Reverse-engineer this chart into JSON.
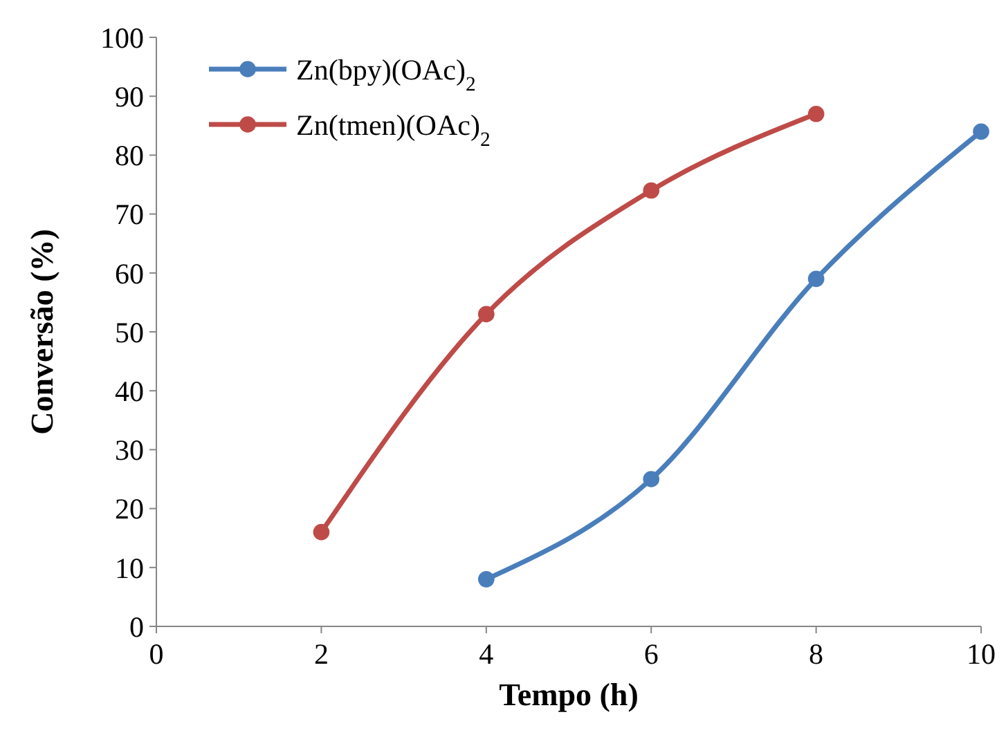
{
  "chart_data": {
    "type": "line",
    "xlabel": "Tempo (h)",
    "ylabel": "Conversão (%)",
    "xlim": [
      0,
      10
    ],
    "xticks": [
      0,
      2,
      4,
      6,
      8,
      10
    ],
    "ylim": [
      0,
      100
    ],
    "yticks": [
      0,
      10,
      20,
      30,
      40,
      50,
      60,
      70,
      80,
      90,
      100
    ],
    "series": [
      {
        "name": "Zn(bpy)(OAc)$_{2}$",
        "color": "#4a7ebb",
        "x": [
          4,
          6,
          8,
          10
        ],
        "values": [
          8,
          25,
          59,
          84
        ]
      },
      {
        "name": "Zn(tmen)(OAc)$_{2}$",
        "color": "#be4b48",
        "x": [
          2,
          4,
          6,
          8
        ],
        "values": [
          16,
          53,
          74,
          87
        ]
      }
    ],
    "marker": "circle",
    "line_style": "solid",
    "grid": false,
    "legend": "top left"
  }
}
